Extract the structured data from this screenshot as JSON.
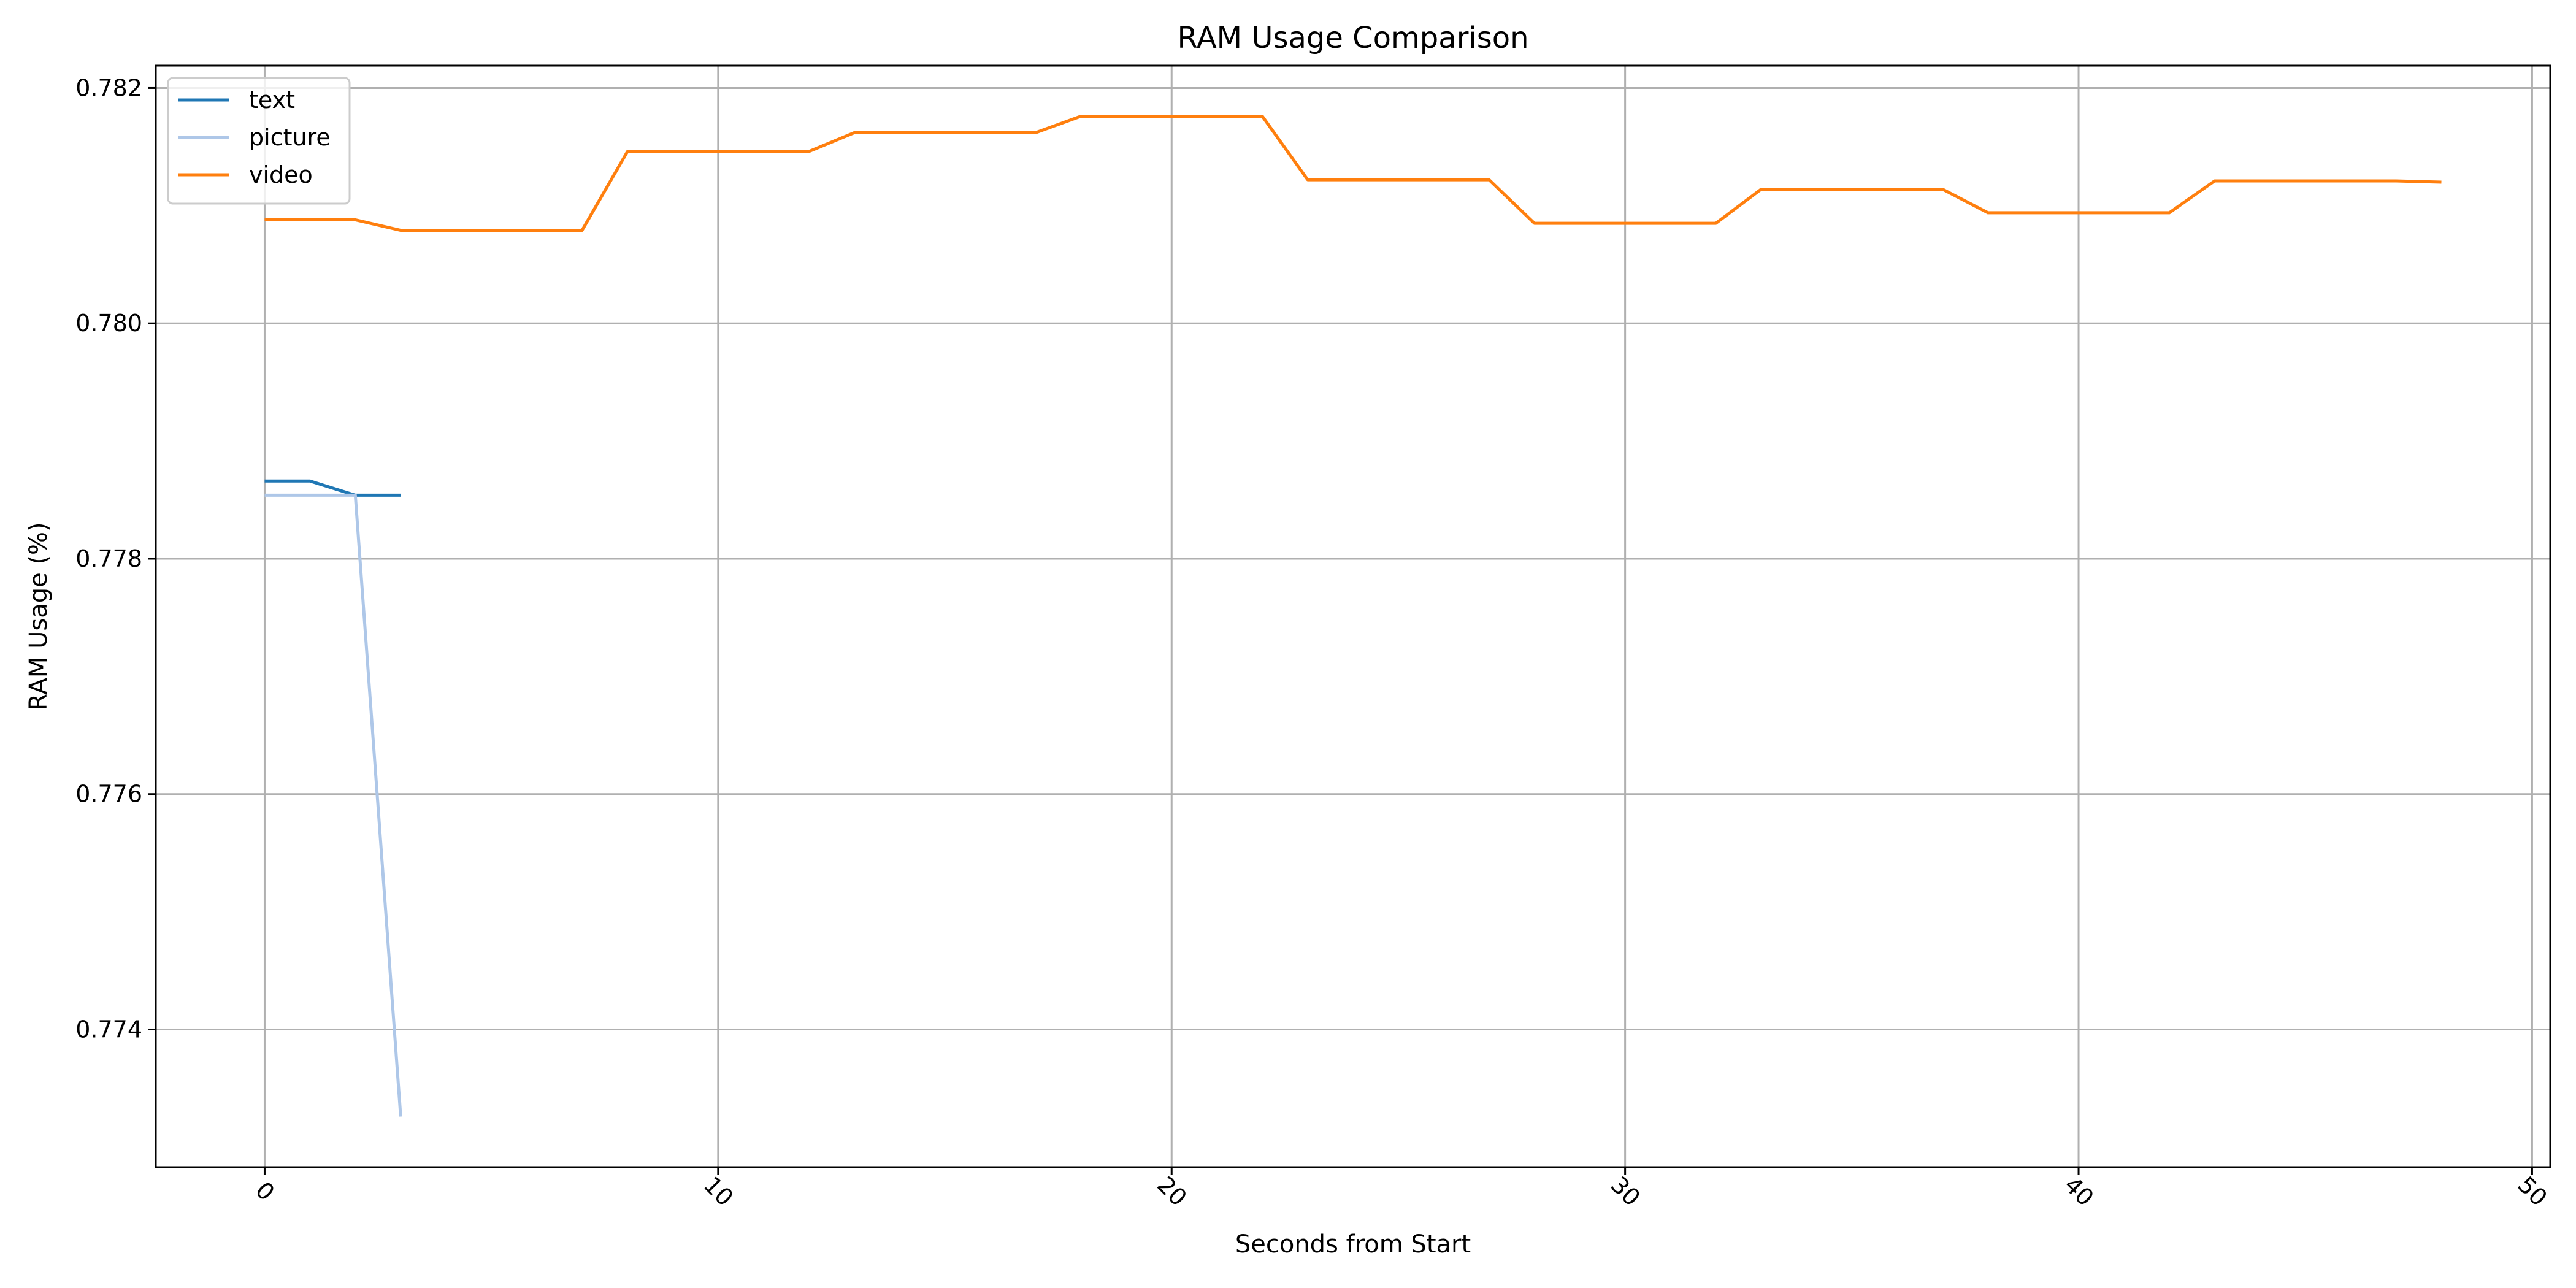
{
  "chart_data": {
    "type": "line",
    "title": "RAM Usage Comparison",
    "xlabel": "Seconds from Start",
    "ylabel": "RAM Usage (%)",
    "xlim": [
      -2.4,
      50.4
    ],
    "ylim": [
      0.77283,
      0.78219
    ],
    "xticks": [
      0,
      10,
      20,
      30,
      40,
      50
    ],
    "xtick_labels": [
      "0",
      "10",
      "20",
      "30",
      "40",
      "50"
    ],
    "xtick_rotation": 45,
    "yticks": [
      0.774,
      0.776,
      0.778,
      0.78,
      0.782
    ],
    "ytick_labels": [
      "0.774",
      "0.776",
      "0.778",
      "0.780",
      "0.782"
    ],
    "grid": true,
    "legend_position": "top-left",
    "series": [
      {
        "name": "text",
        "color": "#1f77b4",
        "x": [
          0,
          1,
          2,
          3
        ],
        "y": [
          0.77866,
          0.77866,
          0.77854,
          0.77854
        ]
      },
      {
        "name": "picture",
        "color": "#aec7e8",
        "x": [
          0,
          1,
          2,
          3
        ],
        "y": [
          0.77854,
          0.77854,
          0.77854,
          0.77326
        ]
      },
      {
        "name": "video",
        "color": "#ff7f0e",
        "x": [
          0,
          1,
          2,
          3,
          4,
          5,
          6,
          7,
          8,
          9,
          10,
          11,
          12,
          13,
          14,
          15,
          16,
          17,
          18,
          19,
          20,
          21,
          22,
          23,
          24,
          25,
          26,
          27,
          28,
          29,
          30,
          31,
          32,
          33,
          34,
          35,
          36,
          37,
          38,
          39,
          40,
          41,
          42,
          43,
          44,
          45,
          46,
          47,
          48
        ],
        "y": [
          0.78088,
          0.78088,
          0.78088,
          0.78079,
          0.78079,
          0.78079,
          0.78079,
          0.78079,
          0.78146,
          0.78146,
          0.78146,
          0.78146,
          0.78146,
          0.78162,
          0.78162,
          0.78162,
          0.78162,
          0.78162,
          0.78176,
          0.78176,
          0.78176,
          0.78176,
          0.78176,
          0.78122,
          0.78122,
          0.78122,
          0.78122,
          0.78122,
          0.78085,
          0.78085,
          0.78085,
          0.78085,
          0.78085,
          0.78114,
          0.78114,
          0.78114,
          0.78114,
          0.78114,
          0.78094,
          0.78094,
          0.78094,
          0.78094,
          0.78094,
          0.78121,
          0.78121,
          0.78121,
          0.78121,
          0.78121,
          0.7812
        ]
      }
    ]
  }
}
